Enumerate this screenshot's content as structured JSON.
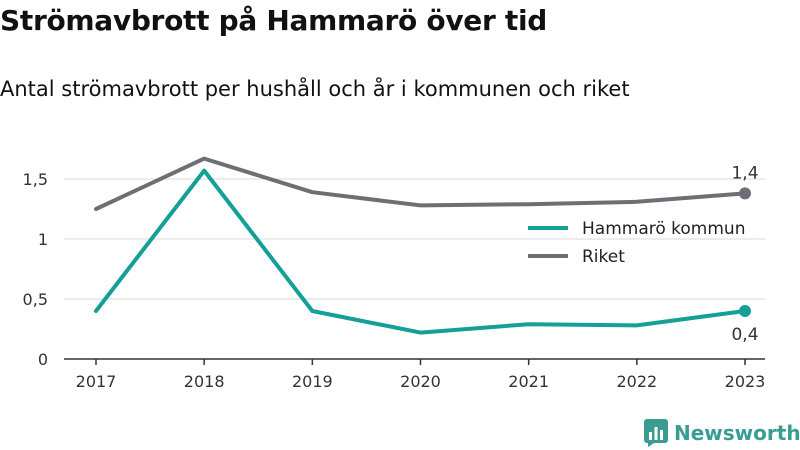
{
  "header": {
    "title": "Strömavbrott på Hammarö över tid",
    "subtitle": "Antal strömavbrott per hushåll och år i kommunen och riket"
  },
  "brand": {
    "name": "Newsworthy",
    "icon": "newsworthy-logo-icon"
  },
  "colors": {
    "hammaro": "#14a098",
    "riket": "#6e6e76",
    "grid": "#d9d9d9",
    "axis": "#333333",
    "brand": "#3a9c93"
  },
  "chart_data": {
    "type": "line",
    "categories": [
      "2017",
      "2018",
      "2019",
      "2020",
      "2021",
      "2022",
      "2023"
    ],
    "series": [
      {
        "name": "Hammarö kommun",
        "values": [
          0.4,
          1.57,
          0.4,
          0.22,
          0.29,
          0.28,
          0.4
        ],
        "end_label": "0,4"
      },
      {
        "name": "Riket",
        "values": [
          1.25,
          1.67,
          1.39,
          1.28,
          1.29,
          1.31,
          1.38
        ],
        "end_label": "1,4"
      }
    ],
    "yticks": [
      "0",
      "0,5",
      "1",
      "1,5"
    ],
    "ytick_values": [
      0,
      0.5,
      1,
      1.5
    ],
    "ylim": [
      0,
      1.7
    ],
    "grid": true,
    "legend_position": "right"
  }
}
